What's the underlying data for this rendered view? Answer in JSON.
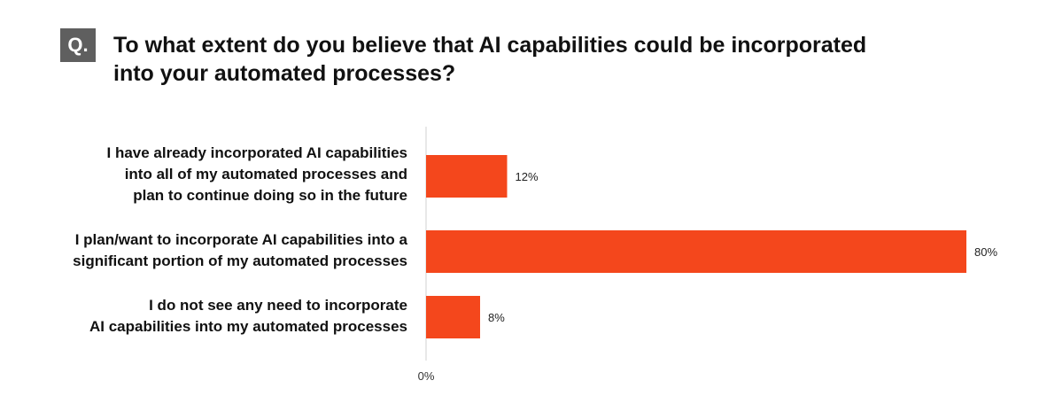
{
  "badge": "Q.",
  "question": {
    "lines": [
      "To what extent do you believe that AI capabilities could be incorporated",
      "into your automated processes?"
    ]
  },
  "chart_data": {
    "type": "bar",
    "orientation": "horizontal",
    "categories": [
      "I have already incorporated AI capabilities into all of my automated processes and plan to continue doing so in the future",
      "I plan/want to incorporate AI capabilities into a significant portion of my automated processes",
      "I do not see any need to incorporate AI capabilities into my automated processes"
    ],
    "category_lines": [
      [
        "I have already incorporated AI capabilities",
        "into all of my automated processes and",
        "plan to continue doing so in the future"
      ],
      [
        "I plan/want to incorporate AI capabilities into a",
        "significant portion of my automated processes"
      ],
      [
        "I do not see any need to incorporate",
        "AI capabilities into my automated processes"
      ]
    ],
    "values": [
      12,
      80,
      8
    ],
    "data_labels": [
      "12%",
      "80%",
      "8%"
    ],
    "unit": "%",
    "xlim": [
      0,
      80
    ],
    "x_tick_labels": [
      "0%"
    ],
    "grid": false,
    "bar_color": "#f4471c"
  }
}
